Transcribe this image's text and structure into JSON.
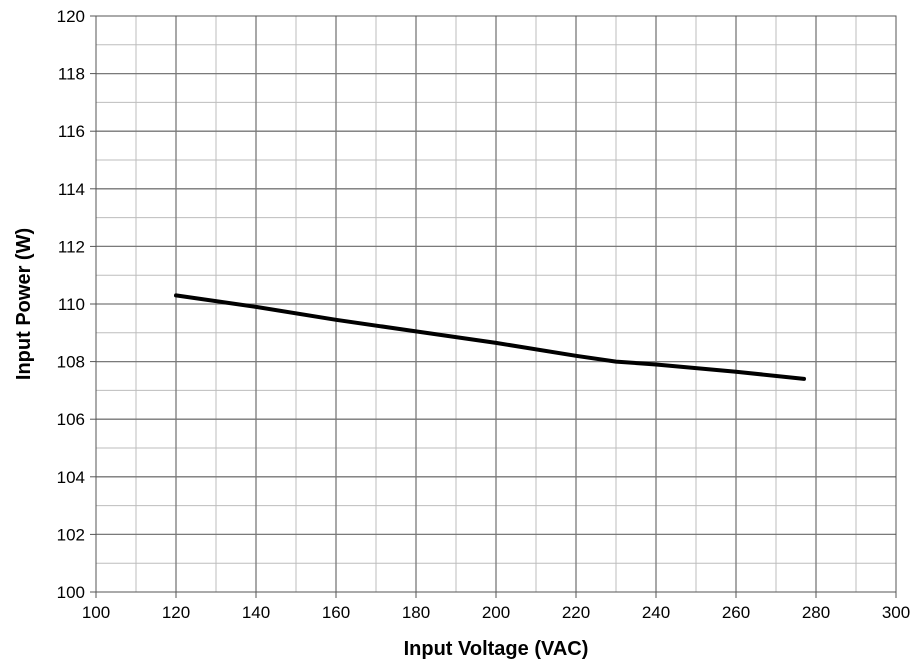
{
  "chart_data": {
    "type": "line",
    "title": "",
    "xlabel": "Input Voltage (VAC)",
    "ylabel": "Input Power (W)",
    "xlim": [
      100,
      300
    ],
    "ylim": [
      100,
      120
    ],
    "x_ticks": [
      100,
      120,
      140,
      160,
      180,
      200,
      220,
      240,
      260,
      280,
      300
    ],
    "y_ticks": [
      100,
      102,
      104,
      106,
      108,
      110,
      112,
      114,
      116,
      118,
      120
    ],
    "x_tick_labels": [
      "100",
      "120",
      "140",
      "160",
      "180",
      "200",
      "220",
      "240",
      "260",
      "280",
      "300"
    ],
    "y_tick_labels": [
      "100",
      "102",
      "104",
      "106",
      "108",
      "110",
      "112",
      "114",
      "116",
      "118",
      "120"
    ],
    "grid": true,
    "x_minor_step": 10,
    "y_minor_step": 1,
    "series": [
      {
        "x": [
          120,
          140,
          160,
          180,
          200,
          220,
          230,
          240,
          260,
          277
        ],
        "y": [
          110.3,
          109.9,
          109.45,
          109.05,
          108.65,
          108.2,
          108.0,
          107.9,
          107.65,
          107.4
        ],
        "color": "#000000"
      }
    ]
  }
}
